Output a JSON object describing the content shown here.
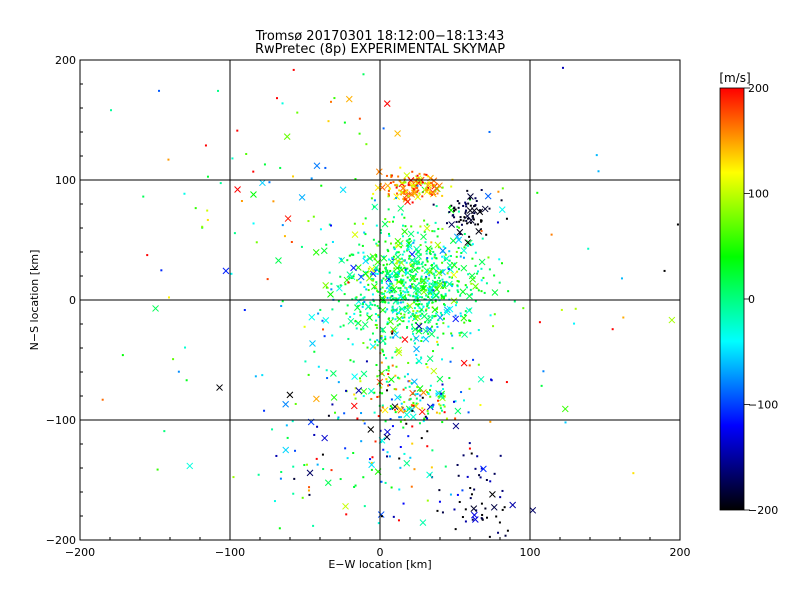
{
  "chart_data": {
    "type": "scatter",
    "title": "Tromsø 20170301 18:12:00−18:13:43",
    "subtitle": "RwPretec (8p) EXPERIMENTAL SKYMAP",
    "xlabel": "E−W location [km]",
    "ylabel": "N−S location [km]",
    "xlim": [
      -200,
      200
    ],
    "ylim": [
      -200,
      200
    ],
    "x_ticks": [
      "−200",
      "−100",
      "0",
      "100",
      "200"
    ],
    "y_ticks": [
      "−200",
      "−100",
      "0",
      "100",
      "200"
    ],
    "grid": true,
    "colorbar": {
      "label": "[m/s]",
      "min": -200,
      "max": 200,
      "ticks": [
        "200",
        "100",
        "0",
        "−100",
        "−200"
      ],
      "colors": [
        "#ff0000",
        "#ffff00",
        "#00ff00",
        "#00ffff",
        "#0000ff",
        "#000000"
      ]
    },
    "markers": {
      "small": "dot",
      "large": "x"
    },
    "clusters": [
      {
        "x": 20,
        "y": 10,
        "sx": 22,
        "sy": 28,
        "n": 850,
        "v": 10,
        "vs": 45
      },
      {
        "x": 22,
        "y": 95,
        "sx": 10,
        "sy": 6,
        "n": 140,
        "v": 150,
        "vs": 40
      },
      {
        "x": 58,
        "y": 72,
        "sx": 9,
        "sy": 9,
        "n": 70,
        "v": -190,
        "vs": 15
      },
      {
        "x": 20,
        "y": -85,
        "sx": 20,
        "sy": 15,
        "n": 170,
        "v": 50,
        "vs": 100
      },
      {
        "x": 65,
        "y": -170,
        "sx": 15,
        "sy": 25,
        "n": 70,
        "v": -170,
        "vs": 30
      },
      {
        "x": -20,
        "y": -130,
        "sx": 40,
        "sy": 40,
        "n": 120,
        "v": -60,
        "vs": 120
      },
      {
        "x": -60,
        "y": 90,
        "sx": 40,
        "sy": 50,
        "n": 70,
        "v": 80,
        "vs": 100
      },
      {
        "x": 0,
        "y": 0,
        "sx": 100,
        "sy": 100,
        "n": 110,
        "v": 0,
        "vs": 120
      }
    ]
  }
}
